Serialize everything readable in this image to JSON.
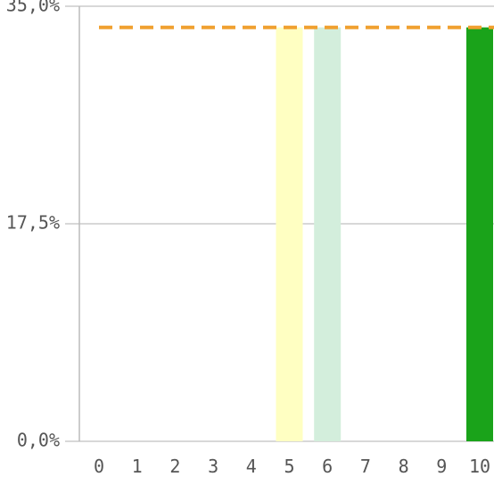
{
  "chart_data": {
    "type": "bar",
    "categories": [
      "0",
      "1",
      "2",
      "3",
      "4",
      "5",
      "6",
      "7",
      "8",
      "9",
      "10"
    ],
    "values": [
      0,
      0,
      0,
      0,
      0,
      33.3,
      33.3,
      0,
      0,
      0,
      33.3
    ],
    "bar_colors": [
      "#1aa31a",
      "#1aa31a",
      "#1aa31a",
      "#1aa31a",
      "#1aa31a",
      "#ffffc2",
      "#d3eedc",
      "#1aa31a",
      "#1aa31a",
      "#1aa31a",
      "#1aa31a"
    ],
    "y_ticks": [
      {
        "value": 0,
        "label": "0,0%"
      },
      {
        "value": 17.5,
        "label": "17,5%"
      },
      {
        "value": 35,
        "label": "35,0%"
      }
    ],
    "ylim": [
      0,
      35
    ],
    "reference_line": {
      "value": 33.3,
      "color": "#f0a030",
      "style": "dashed"
    },
    "grid": true,
    "title": "",
    "xlabel": "",
    "ylabel": ""
  }
}
